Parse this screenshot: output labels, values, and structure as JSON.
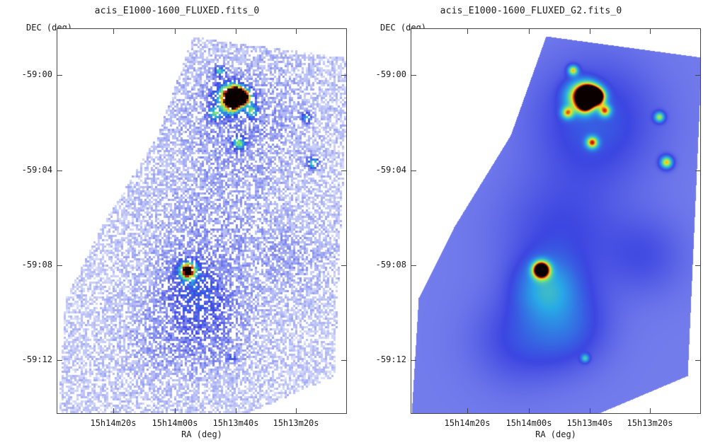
{
  "panels": [
    {
      "title": "acis_E1000-1600_FLUXED.fits_0",
      "ylabel": "DEC (deg)",
      "xlabel": "RA (deg)",
      "y_ticks": [
        "-59:00",
        "-59:04",
        "-59:08",
        "-59:12"
      ],
      "x_ticks": [
        "15h14m20s",
        "15h14m00s",
        "15h13m40s",
        "15h13m20s"
      ],
      "render": "pixelated"
    },
    {
      "title": "acis_E1000-1600_FLUXED_G2.fits_0",
      "ylabel": "DEC (deg)",
      "xlabel": "RA (deg)",
      "y_ticks": [
        "-59:00",
        "-59:04",
        "-59:08",
        "-59:12"
      ],
      "x_ticks": [
        "15h14m20s",
        "15h14m00s",
        "15h13m40s",
        "15h13m20s"
      ],
      "render": "smoothed"
    }
  ],
  "colors": {
    "background": "#ffffff",
    "axis": "#444444",
    "low": "#e8ecff",
    "mid": "#2f3de0",
    "high_cyan": "#22c4e8",
    "high_yellow": "#f6e21c",
    "peak": "#d11a12",
    "core": "#000000"
  }
}
